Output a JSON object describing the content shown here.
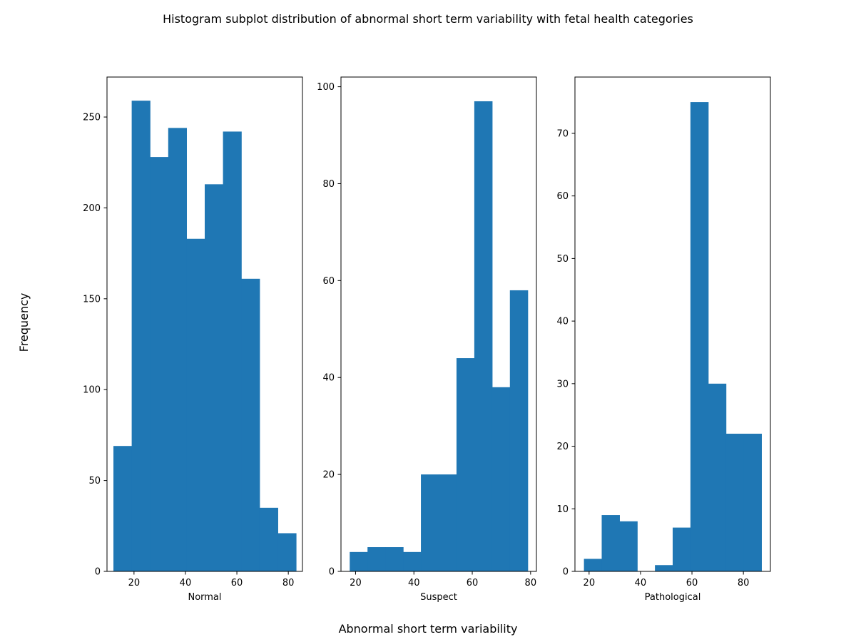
{
  "figure": {
    "suptitle": "Histogram subplot distribution of abnormal short term variability with fetal health categories",
    "supxlabel": "Abnormal short term variability",
    "supylabel": "Frequency"
  },
  "chart_data": [
    {
      "type": "bar",
      "histogram": true,
      "xlabel": "Normal",
      "bar_color": "#1f77b4",
      "xlim": [
        9.5,
        85.5
      ],
      "ylim": [
        0,
        272
      ],
      "xticks": [
        20,
        40,
        60,
        80
      ],
      "yticks": [
        0,
        50,
        100,
        150,
        200,
        250
      ],
      "bin_edges": [
        12,
        19.1,
        26.2,
        33.3,
        40.4,
        47.5,
        54.6,
        61.7,
        68.8,
        75.9,
        83
      ],
      "values": [
        69,
        259,
        228,
        244,
        183,
        213,
        242,
        161,
        35,
        21
      ]
    },
    {
      "type": "bar",
      "histogram": true,
      "xlabel": "Suspect",
      "bar_color": "#1f77b4",
      "xlim": [
        15,
        82
      ],
      "ylim": [
        0,
        102
      ],
      "xticks": [
        20,
        40,
        60,
        80
      ],
      "yticks": [
        0,
        20,
        40,
        60,
        80,
        100
      ],
      "bin_edges": [
        18,
        24.1,
        30.2,
        36.3,
        42.4,
        48.5,
        54.6,
        60.7,
        66.8,
        72.9,
        79
      ],
      "values": [
        4,
        5,
        5,
        4,
        20,
        20,
        44,
        97,
        38,
        58
      ]
    },
    {
      "type": "bar",
      "histogram": true,
      "xlabel": "Pathological",
      "bar_color": "#1f77b4",
      "xlim": [
        14.5,
        90.5
      ],
      "ylim": [
        0,
        79
      ],
      "xticks": [
        20,
        40,
        60,
        80
      ],
      "yticks": [
        0,
        10,
        20,
        30,
        40,
        50,
        60,
        70
      ],
      "bin_edges": [
        18,
        24.9,
        31.8,
        38.7,
        45.6,
        52.5,
        59.4,
        66.3,
        73.2,
        80.1,
        87
      ],
      "values": [
        2,
        9,
        8,
        0,
        1,
        7,
        75,
        30,
        22,
        22
      ]
    }
  ]
}
